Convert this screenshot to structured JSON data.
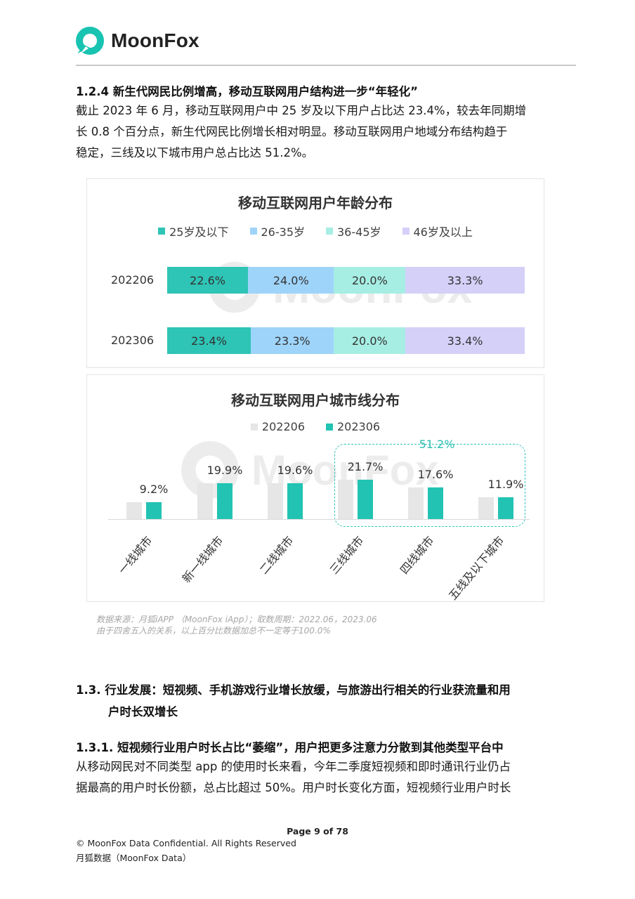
{
  "header": {
    "logo_text": "MoonFox"
  },
  "section_124": {
    "heading": "1.2.4  新生代网民比例增高，移动互联网用户结构进一步“年轻化”",
    "lines": [
      "截止 2023 年 6 月，移动互联网用户中 25 岁及以下用户占比达 23.4%，较去年同期增",
      "长  0.8  个百分点，新生代网民比例增长相对明显。移动互联网用户地域分布结构趋于",
      "稳定，三线及以下城市用户总占比达 51.2%。"
    ]
  },
  "chart_data": [
    {
      "type": "bar",
      "orientation": "horizontal-stacked-100",
      "title": "移动互联网用户年龄分布",
      "categories": [
        "202206",
        "202306"
      ],
      "series": [
        {
          "name": "25岁及以下",
          "color": "#2ec4b6",
          "values": [
            22.6,
            23.4
          ],
          "labels": [
            "22.6%",
            "23.4%"
          ]
        },
        {
          "name": "26-35岁",
          "color": "#9ed4fa",
          "values": [
            24.0,
            23.3
          ],
          "labels": [
            "24.0%",
            "23.3%"
          ]
        },
        {
          "name": "36-45岁",
          "color": "#a6eee3",
          "values": [
            20.0,
            20.0
          ],
          "labels": [
            "20.0%",
            "20.0%"
          ]
        },
        {
          "name": "46岁及以上",
          "color": "#d4d0f8",
          "values": [
            33.3,
            33.4
          ],
          "labels": [
            "33.3%",
            "33.4%"
          ]
        }
      ],
      "legend_position": "top",
      "grid": false
    },
    {
      "type": "bar",
      "title": "移动互联网用户城市线分布",
      "categories": [
        "一线城市",
        "新一线城市",
        "二线城市",
        "三线城市",
        "四线城市",
        "五线及以下城市"
      ],
      "series": [
        {
          "name": "202206",
          "color": "#e6e6e6",
          "values": [
            9.3,
            19.8,
            19.6,
            21.6,
            17.6,
            11.9
          ]
        },
        {
          "name": "202306",
          "color": "#22c3b3",
          "values": [
            9.2,
            19.9,
            19.6,
            21.7,
            17.6,
            11.9
          ],
          "labels": [
            "9.2%",
            "19.9%",
            "19.6%",
            "21.7%",
            "17.6%",
            "11.9%"
          ]
        }
      ],
      "ylim": [
        0,
        25
      ],
      "annotation": {
        "label": "51.2%",
        "categories": [
          "三线城市",
          "四线城市",
          "五线及以下城市"
        ]
      },
      "legend_position": "top",
      "grid": false
    }
  ],
  "watermark_text": "MoonFox",
  "source": {
    "line1": "数据来源：月狐iAPP （MoonFox iApp）；取数周期：2022.06，2023.06",
    "line2": "由于四舍五入的关系，以上百分比数据加总不一定等于100.0%"
  },
  "section_13": {
    "heading_line1": "1.3.  行业发展：短视频、手机游戏行业增长放缓，与旅游出行相关的行业获流量和用",
    "heading_line2": "户时长双增长"
  },
  "section_131": {
    "heading": "1.3.1. 短视频行业用户时长占比“萎缩”，用户把更多注意力分散到其他类型平台中",
    "lines": [
      "从移动网民对不同类型 app 的使用时长来看，今年二季度短视频和即时通讯行业仍占",
      "据最高的用户时长份额，总占比超过  50%。用户时长变化方面，短视频行业用户时长"
    ]
  },
  "footer": {
    "page": "Page  9 of 78",
    "copyright": "© MoonFox Data Confidential. All Rights Reserved",
    "company": "月狐数据（MoonFox Data）"
  }
}
